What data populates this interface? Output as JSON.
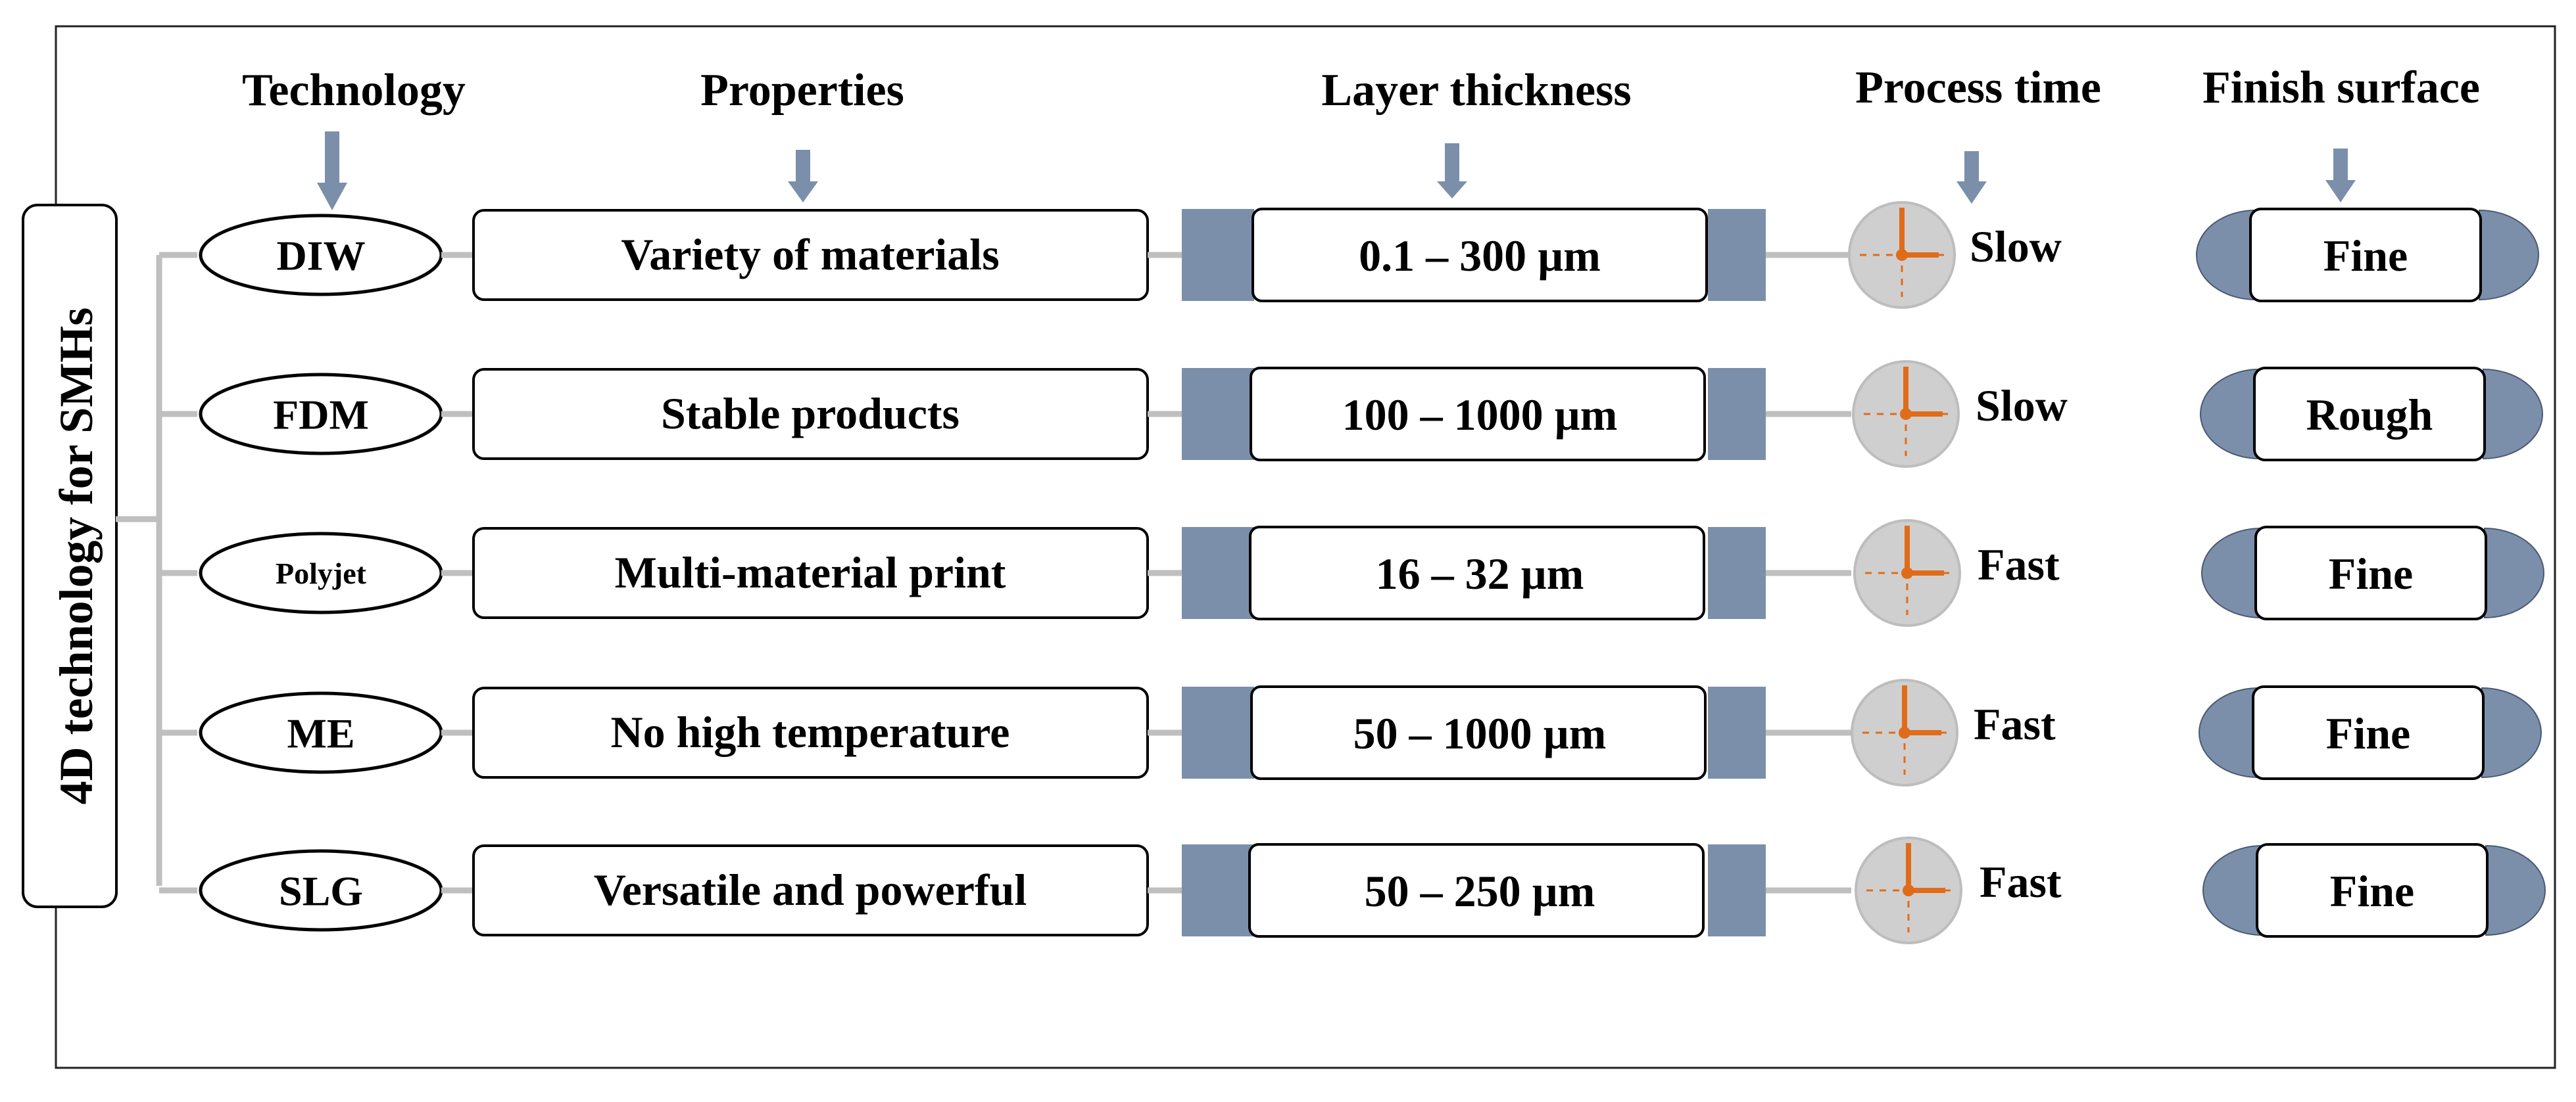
{
  "side_label": "4D technology for SMHs",
  "headers": {
    "technology": "Technology",
    "properties": "Properties",
    "layer_thickness": "Layer thickness",
    "process_time": "Process time",
    "finish_surface": "Finish surface"
  },
  "rows": [
    {
      "technology": "DIW",
      "property": "Variety of materials",
      "layer": "0.1 – 300 µm",
      "time": "Slow",
      "finish": "Fine"
    },
    {
      "technology": "FDM",
      "property": "Stable products",
      "layer": "100 – 1000 µm",
      "time": "Slow",
      "finish": "Rough"
    },
    {
      "technology": "Polyjet",
      "property": "Multi-material print",
      "layer": "16 – 32 µm",
      "time": "Fast",
      "finish": "Fine"
    },
    {
      "technology": "ME",
      "property": "No high temperature",
      "layer": "50 – 1000 µm",
      "time": "Fast",
      "finish": "Fine"
    },
    {
      "technology": "SLG",
      "property": "Versatile and powerful",
      "layer": "50 – 250 µm",
      "time": "Fast",
      "finish": "Fine"
    }
  ],
  "colors": {
    "accent_blue": "#7b8fab",
    "connector_gray": "#bfbfbf",
    "clock_face": "#cfcfcf",
    "clock_hand": "#e06c1a"
  }
}
